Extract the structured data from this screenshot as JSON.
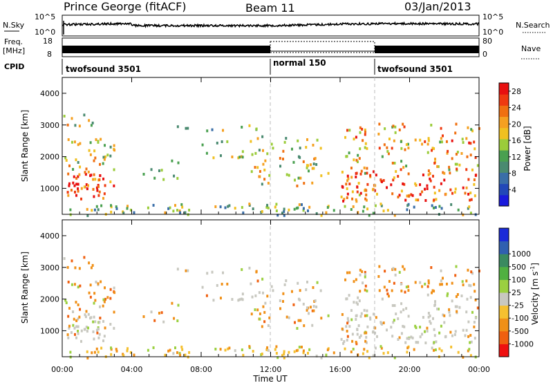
{
  "header": {
    "station": "Prince George (fitACF)",
    "beam": "Beam 11",
    "date": "03/Jan/2013"
  },
  "strips": {
    "nsky_label": "N.Sky",
    "nsky_ticks": [
      "10^5",
      "10^0"
    ],
    "nsearch_label": "N.Search",
    "nsearch_ticks": [
      "10^5",
      "10^0"
    ],
    "freq_label_1": "Freq.",
    "freq_label_2": "[MHz]",
    "freq_ticks": [
      "18",
      "8"
    ],
    "nave_label": "Nave",
    "nave_ticks": [
      "80",
      "0"
    ],
    "cpid_label": "CPID",
    "cpid_segments": [
      {
        "name": "twofsound 3501",
        "start": 0,
        "end": 12
      },
      {
        "name": "normal 150",
        "start": 12,
        "end": 18
      },
      {
        "name": "twofsound 3501",
        "start": 18,
        "end": 24
      }
    ]
  },
  "colors": {
    "power_scale": [
      "#1a1adc",
      "#2248b8",
      "#3a6ea8",
      "#4a8a70",
      "#4aa050",
      "#9bcc3a",
      "#f0c020",
      "#f5a020",
      "#f07010",
      "#ef3a10",
      "#e81010"
    ],
    "velocity_scale": [
      "#ef1010",
      "#f06010",
      "#f09018",
      "#f5c030",
      "#c8c8c0",
      "#9bd040",
      "#50b040",
      "#3a8a60",
      "#3060b0",
      "#1a2ad8"
    ]
  },
  "chart_data": [
    {
      "type": "heatmap",
      "name": "power-panel",
      "ylabel": "Slant Range [km]",
      "yticks": [
        "1000",
        "2000",
        "3000",
        "4000"
      ],
      "ylim": [
        180,
        4500
      ],
      "xlim": [
        0,
        24
      ],
      "colorbar_label": "Power [dB]",
      "colorbar_ticks": [
        "4",
        "8",
        "12",
        "16",
        "20",
        "24",
        "28"
      ],
      "colorbar_range": [
        0,
        30
      ]
    },
    {
      "type": "heatmap",
      "name": "velocity-panel",
      "ylabel": "Slant Range [km]",
      "yticks": [
        "1000",
        "2000",
        "3000",
        "4000"
      ],
      "ylim": [
        180,
        4500
      ],
      "xlim": [
        0,
        24
      ],
      "colorbar_label": "Velocity [m s",
      "colorbar_label_sup": "-1",
      "colorbar_label_end": "]",
      "colorbar_ticks": [
        "-1000",
        "-500",
        "-100",
        "-25",
        "25",
        "100",
        "500",
        "1000"
      ]
    }
  ],
  "x_axis": {
    "ticks": [
      "00:00",
      "04:00",
      "08:00",
      "12:00",
      "16:00",
      "20:00",
      "00:00"
    ],
    "label": "Time UT"
  }
}
